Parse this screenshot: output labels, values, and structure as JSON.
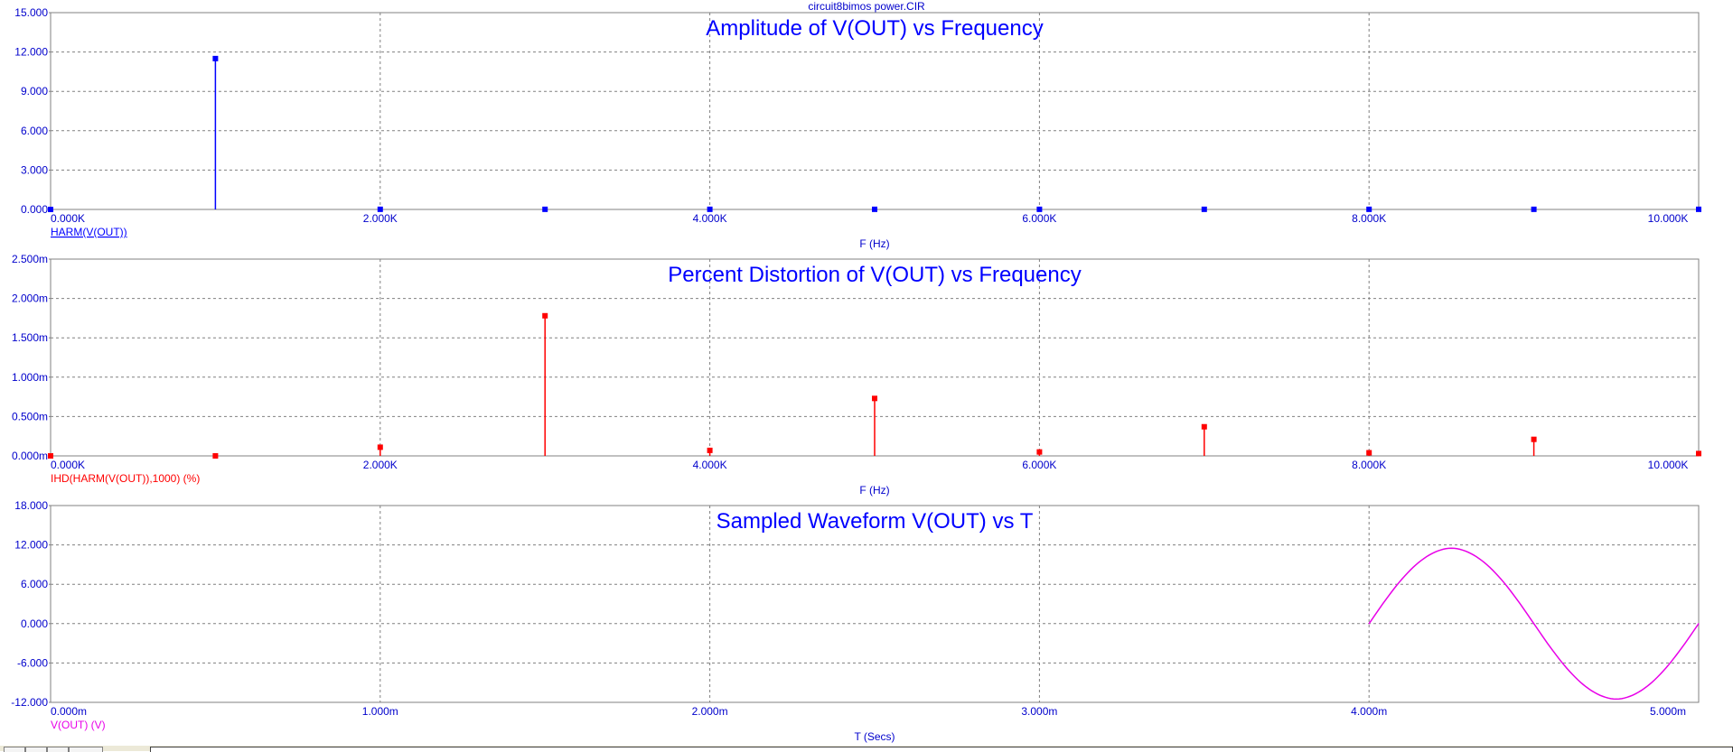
{
  "window": {
    "file_title": "circuit8bimos power.CIR"
  },
  "colors": {
    "axis_text": "#0000cc",
    "grid": "#808080",
    "frame": "#808080"
  },
  "chart_data": [
    {
      "type": "bar",
      "title": "Amplitude of V(OUT) vs Frequency",
      "xlabel": "F (Hz)",
      "ylabel": "",
      "trace_label": "HARM(V(OUT))",
      "trace_label_underlined": true,
      "color": "#0000ff",
      "marker": "square",
      "xlim": [
        0,
        10000
      ],
      "ylim": [
        0,
        15
      ],
      "xticks": [
        0,
        2000,
        4000,
        6000,
        8000,
        10000
      ],
      "xtick_labels": [
        "0.000K",
        "2.000K",
        "4.000K",
        "6.000K",
        "8.000K",
        "10.000K"
      ],
      "yticks": [
        0,
        3,
        6,
        9,
        12,
        15
      ],
      "ytick_labels": [
        "0.000",
        "3.000",
        "6.000",
        "9.000",
        "12.000",
        "15.000"
      ],
      "x": [
        0,
        1000,
        2000,
        3000,
        4000,
        5000,
        6000,
        7000,
        8000,
        9000,
        10000
      ],
      "values": [
        0,
        11.5,
        0.01,
        0.01,
        0.01,
        0.01,
        0.01,
        0.01,
        0.01,
        0.01,
        0.01
      ],
      "grid": true
    },
    {
      "type": "bar",
      "title": "Percent Distortion of V(OUT) vs Frequency",
      "xlabel": "F (Hz)",
      "ylabel": "",
      "trace_label": "IHD(HARM(V(OUT)),1000) (%)",
      "trace_label_underlined": false,
      "color": "#ff0000",
      "marker": "square",
      "xlim": [
        0,
        10000
      ],
      "ylim": [
        0,
        2.5
      ],
      "xticks": [
        0,
        2000,
        4000,
        6000,
        8000,
        10000
      ],
      "xtick_labels": [
        "0.000K",
        "2.000K",
        "4.000K",
        "6.000K",
        "8.000K",
        "10.000K"
      ],
      "yticks": [
        0,
        0.5,
        1.0,
        1.5,
        2.0,
        2.5
      ],
      "ytick_labels": [
        "0.000m",
        "0.500m",
        "1.000m",
        "1.500m",
        "2.000m",
        "2.500m"
      ],
      "x": [
        0,
        1000,
        2000,
        3000,
        4000,
        5000,
        6000,
        7000,
        8000,
        9000,
        10000
      ],
      "values": [
        0,
        0,
        0.11,
        1.78,
        0.07,
        0.73,
        0.05,
        0.37,
        0.04,
        0.21,
        0.03
      ],
      "grid": true
    },
    {
      "type": "line",
      "title": "Sampled Waveform  V(OUT) vs T",
      "xlabel": "T (Secs)",
      "ylabel": "",
      "trace_label": "V(OUT) (V)",
      "trace_label_underlined": false,
      "color": "#e800e8",
      "xlim": [
        0,
        5
      ],
      "ylim": [
        -12,
        18
      ],
      "xticks": [
        0,
        1,
        2,
        3,
        4,
        5
      ],
      "xtick_labels": [
        "0.000m",
        "1.000m",
        "2.000m",
        "3.000m",
        "4.000m",
        "5.000m"
      ],
      "yticks": [
        -12,
        -6,
        0,
        6,
        12,
        18
      ],
      "ytick_labels": [
        "-12.000",
        "-6.000",
        "0.000",
        "6.000",
        "12.000",
        "18.000"
      ],
      "x": [
        4.0,
        4.05,
        4.1,
        4.15,
        4.2,
        4.25,
        4.3,
        4.35,
        4.4,
        4.45,
        4.5,
        4.55,
        4.6,
        4.65,
        4.7,
        4.75,
        4.8,
        4.85,
        4.9,
        4.95,
        5.0
      ],
      "values": [
        0,
        3.6,
        6.8,
        9.3,
        10.9,
        11.5,
        10.9,
        9.3,
        6.8,
        3.6,
        0,
        -3.6,
        -6.8,
        -9.3,
        -10.9,
        -11.5,
        -10.9,
        -9.3,
        -6.8,
        -3.6,
        0
      ],
      "grid": true
    }
  ]
}
